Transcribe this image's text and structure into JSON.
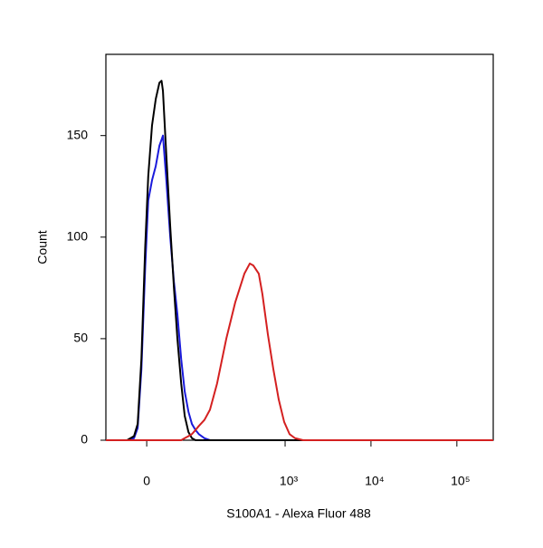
{
  "chart_data": {
    "type": "line",
    "x_label": "S100A1 - Alexa Fluor 488",
    "y_label": "Count",
    "x_scale": "biexponential",
    "x": [
      -65,
      -42,
      -27,
      -17,
      -12,
      -7,
      -2,
      2,
      7,
      12,
      17,
      20,
      22,
      27,
      33,
      39,
      45,
      52,
      59,
      67,
      75,
      84,
      93,
      110,
      129,
      158,
      204,
      261,
      334,
      387,
      426,
      493,
      543,
      630,
      729,
      843,
      975,
      1127,
      1304,
      1622,
      2332,
      7835,
      265000
    ],
    "series": [
      {
        "name": "Blue",
        "color": "#1a1adb",
        "values": [
          0,
          0,
          0,
          1,
          6,
          35,
          85,
          118,
          128,
          135,
          145,
          148,
          150,
          128,
          100,
          78,
          62,
          40,
          24,
          14,
          8,
          5,
          3,
          1,
          0,
          0,
          0,
          0,
          0,
          0,
          0,
          0,
          0,
          0,
          0,
          0,
          0,
          0,
          0,
          0,
          0,
          0,
          0
        ]
      },
      {
        "name": "Black",
        "color": "#000000",
        "values": [
          0,
          0,
          0,
          2,
          8,
          40,
          95,
          130,
          155,
          168,
          176,
          177,
          172,
          140,
          105,
          75,
          50,
          28,
          12,
          4,
          1,
          0,
          0,
          0,
          0,
          0,
          0,
          0,
          0,
          0,
          0,
          0,
          0,
          0,
          0,
          0,
          0,
          0,
          0,
          0,
          0,
          0,
          0
        ]
      },
      {
        "name": "Red",
        "color": "#d42020",
        "values": [
          0,
          0,
          0,
          0,
          0,
          0,
          0,
          0,
          0,
          0,
          0,
          0,
          0,
          0,
          0,
          0,
          0,
          0,
          1,
          2,
          3,
          5,
          7,
          10,
          15,
          28,
          50,
          68,
          82,
          87,
          86,
          82,
          72,
          52,
          35,
          20,
          9,
          3,
          1,
          0,
          0,
          0,
          0
        ]
      }
    ],
    "xlim": [
      -65,
      265000
    ],
    "xticks": [
      0,
      {
        "value": 1000,
        "label": "10³"
      },
      {
        "value": 10000,
        "label": "10⁴"
      },
      {
        "value": 100000,
        "label": "10⁵"
      }
    ],
    "ylim": [
      0,
      190
    ],
    "yticks": [
      0,
      50,
      100,
      150
    ]
  }
}
